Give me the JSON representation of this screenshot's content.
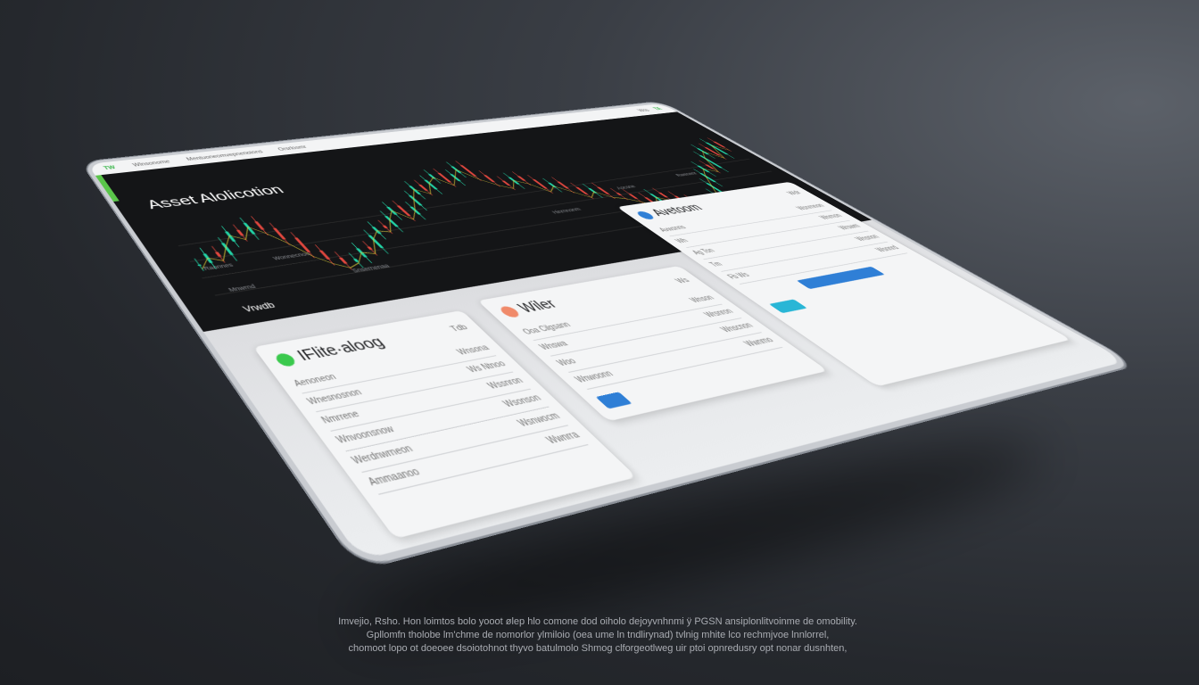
{
  "topbar": {
    "logo": "TW",
    "nav": [
      "Wlnsonome",
      "Mentuoneomvepnenoions",
      "Orsrlosmr"
    ],
    "right": [
      "Wss",
      "TA"
    ]
  },
  "main": {
    "title": "Asset Alolicotion",
    "labels": [
      "Raonnes",
      "Wonnecnoo",
      "Mnwrnd",
      "Snsernenaa",
      "Vrwdb",
      "Hinrnnonm",
      "Aocone",
      "Rwenenr"
    ],
    "price_series": [
      52,
      58,
      55,
      63,
      70,
      66,
      74,
      68,
      60,
      50,
      44,
      40,
      42,
      48,
      46,
      55,
      60,
      58,
      66,
      72,
      64,
      70,
      78,
      85,
      80,
      88,
      92,
      84,
      90,
      96,
      86,
      80,
      76,
      82,
      78,
      70,
      74,
      68,
      62,
      66,
      60,
      58,
      54,
      50,
      56,
      52,
      48,
      44,
      46,
      42,
      50,
      58,
      66,
      72,
      68,
      80,
      86,
      78,
      90,
      84
    ]
  },
  "cards": [
    {
      "title": "IFlite·aloog",
      "badge": "Tdb",
      "rows": [
        [
          "Aenoneon",
          "Wnsona"
        ],
        [
          "Wnesnosnon",
          "Ws Ntnoo"
        ],
        [
          "Nmrrene",
          "Wssnron"
        ],
        [
          "Wnvoonsnow",
          "Wsonson"
        ],
        [
          "Werdnwrneon",
          "Wsnwocm"
        ],
        [
          "Ammaanoo",
          "Wwnrra"
        ]
      ]
    },
    {
      "title": "Wiler",
      "badge": "Ws",
      "rows": [
        [
          "Ooa Cilgsann",
          "Wnson"
        ],
        [
          "Wnswa",
          "Wrsnron"
        ],
        [
          "Woo",
          "Wnscnon"
        ],
        [
          "Wnwoonn",
          "Wwnrno"
        ]
      ]
    },
    {
      "title": "Avetoom",
      "badge": "Wdr",
      "rows": [
        [
          "Avwsnns",
          "Wsnrnnon"
        ],
        [
          "Wh",
          "Wnrnon"
        ],
        [
          "Ag Ton",
          "Wrswm"
        ],
        [
          "Tm",
          "Wnsnon"
        ],
        [
          "Fb Ws",
          "Wsnnrd"
        ]
      ]
    }
  ],
  "colors": {
    "up": "#22d3a6",
    "down": "#e0473e",
    "line": "#e6d43a",
    "accent": "#2f7fd6",
    "brand": "#39b54a"
  },
  "caption": [
    "Imvejio, Rsho. Hon loimtos bolo yooot ølep hlo comone dod oiholo dejoyvnhnmi ÿ PGSN ansiplonlitvoinme de omobility.",
    "Gpllomfn tholobe lm'chme de nomorlor ylmiloio (oea ume ln tndlirynad) tvlnig mhite lco rechmjvoe lnnlorrel,",
    "chomoot lopo ot doeoee dsoiotohnot thyvo batulmolo Shmog clforgeotlweg uir ptoi opnredusry opt nonar dusnhten,"
  ]
}
